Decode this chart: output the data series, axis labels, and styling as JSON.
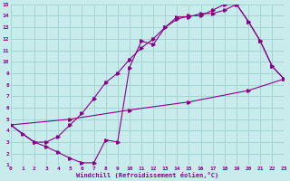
{
  "xlabel": "Windchill (Refroidissement éolien,°C)",
  "bg_color": "#c8ecec",
  "grid_color": "#a0d0d0",
  "line_color": "#880088",
  "xmin": 0,
  "xmax": 23,
  "ymin": 1,
  "ymax": 15,
  "line1_x": [
    0,
    1,
    2,
    3,
    4,
    5,
    6,
    7,
    8,
    9,
    10,
    11,
    12,
    13,
    14,
    15,
    16,
    17,
    18,
    19,
    20,
    21,
    22,
    23
  ],
  "line1_y": [
    4.5,
    3.7,
    3.0,
    2.6,
    2.1,
    1.6,
    1.2,
    1.2,
    3.2,
    3.0,
    9.5,
    11.8,
    11.5,
    13.0,
    13.9,
    13.9,
    14.2,
    14.2,
    14.5,
    15.0,
    13.5,
    11.8,
    9.6,
    8.5
  ],
  "line2_x": [
    0,
    2,
    3,
    4,
    5,
    6,
    7,
    8,
    9,
    10,
    11,
    12,
    13,
    14,
    15,
    16,
    17,
    18,
    19,
    20,
    21,
    22,
    23
  ],
  "line2_y": [
    4.5,
    3.0,
    3.0,
    3.5,
    4.5,
    5.5,
    6.8,
    8.2,
    9.0,
    10.2,
    11.2,
    12.0,
    13.0,
    13.7,
    14.0,
    14.0,
    14.5,
    15.0,
    15.0,
    13.5,
    11.8,
    9.6,
    8.5
  ],
  "line3_x": [
    0,
    5,
    10,
    15,
    20,
    23
  ],
  "line3_y": [
    4.5,
    5.0,
    5.8,
    6.5,
    7.5,
    8.5
  ]
}
